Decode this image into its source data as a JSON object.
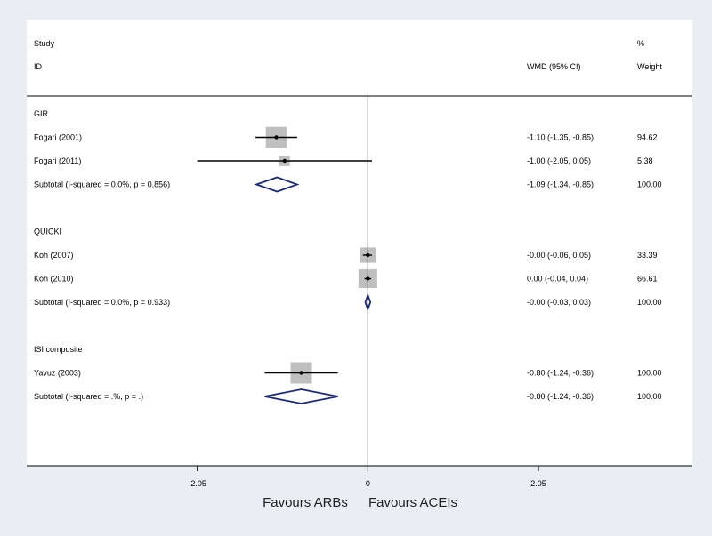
{
  "header": {
    "study_line1": "Study",
    "study_line2": "ID",
    "wmd": "WMD (95% CI)",
    "weight_line1": "%",
    "weight_line2": "Weight"
  },
  "chart_data": {
    "type": "forest",
    "xlim": [
      -4.1,
      3.9
    ],
    "null_line": 0,
    "ticks": [
      {
        "value": -2.05,
        "label": "-2.05"
      },
      {
        "value": 0,
        "label": "0"
      },
      {
        "value": 2.05,
        "label": "2.05"
      }
    ],
    "xlabel_left": "Favours ARBs",
    "xlabel_right": "Favours ACEIs",
    "groups": [
      {
        "name": "GIR",
        "studies": [
          {
            "label": "Fogari (2001)",
            "estimate": -1.1,
            "lower": -1.35,
            "upper": -0.85,
            "ci_text": "-1.10 (-1.35, -0.85)",
            "weight": "94.62"
          },
          {
            "label": "Fogari (2011)",
            "estimate": -1.0,
            "lower": -2.05,
            "upper": 0.05,
            "ci_text": "-1.00 (-2.05, 0.05)",
            "weight": "5.38"
          }
        ],
        "subtotal": {
          "label": "Subtotal  (I-squared = 0.0%, p = 0.856)",
          "estimate": -1.09,
          "lower": -1.34,
          "upper": -0.85,
          "ci_text": "-1.09 (-1.34, -0.85)",
          "weight": "100.00"
        }
      },
      {
        "name": "QUICKI",
        "studies": [
          {
            "label": "Koh (2007)",
            "estimate": -0.0,
            "lower": -0.06,
            "upper": 0.05,
            "ci_text": "-0.00 (-0.06, 0.05)",
            "weight": "33.39"
          },
          {
            "label": "Koh  (2010)",
            "estimate": 0.0,
            "lower": -0.04,
            "upper": 0.04,
            "ci_text": "0.00 (-0.04, 0.04)",
            "weight": "66.61"
          }
        ],
        "subtotal": {
          "label": "Subtotal  (I-squared = 0.0%, p = 0.933)",
          "estimate": -0.0,
          "lower": -0.03,
          "upper": 0.03,
          "ci_text": "-0.00 (-0.03, 0.03)",
          "weight": "100.00"
        }
      },
      {
        "name": "ISI composite",
        "studies": [
          {
            "label": "Yavuz (2003)",
            "estimate": -0.8,
            "lower": -1.24,
            "upper": -0.36,
            "ci_text": "-0.80 (-1.24, -0.36)",
            "weight": "100.00"
          }
        ],
        "subtotal": {
          "label": "Subtotal  (I-squared = .%, p = .)",
          "estimate": -0.8,
          "lower": -1.24,
          "upper": -0.36,
          "ci_text": "-0.80 (-1.24, -0.36)",
          "weight": "100.00"
        }
      }
    ]
  }
}
